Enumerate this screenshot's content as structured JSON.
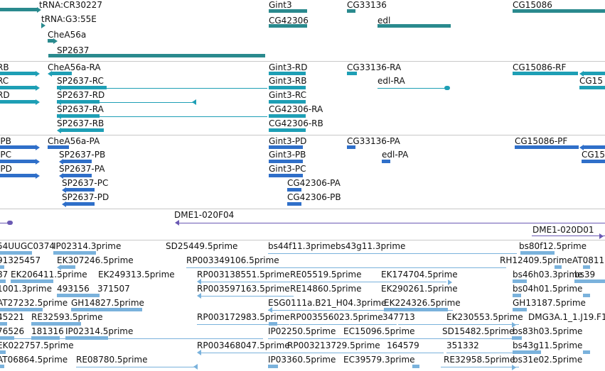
{
  "colors": {
    "gene": "#2a8a8e",
    "mrna": "#1e9fb5",
    "cds": "#2f6fc9",
    "clone": "#6a59b3",
    "est": "#7ab2dc",
    "separator": "#c8c8c8",
    "text": "#111111"
  },
  "tracks": [
    {
      "id": "genes",
      "color": "#2a8a8e",
      "features": [
        {
          "label": "tRNA:CR30227"
        },
        {
          "label": "tRNA:G3:55E"
        },
        {
          "label": "CheA56a"
        },
        {
          "label": "SP2637"
        },
        {
          "label": "Gint3"
        },
        {
          "label": "CG42306"
        },
        {
          "label": "CG33136"
        },
        {
          "label": "edl"
        },
        {
          "label": "CG15086"
        }
      ]
    },
    {
      "id": "transcripts",
      "color": "#1e9fb5",
      "features": [
        {
          "label": "RB"
        },
        {
          "label": "RC"
        },
        {
          "label": "RD"
        },
        {
          "label": "CheA56a-RA"
        },
        {
          "label": "SP2637-RC"
        },
        {
          "label": "SP2637-RD"
        },
        {
          "label": "SP2637-RA"
        },
        {
          "label": "SP2637-RB"
        },
        {
          "label": "Gint3-RD"
        },
        {
          "label": "Gint3-RB"
        },
        {
          "label": "Gint3-RC"
        },
        {
          "label": "CG42306-RA"
        },
        {
          "label": "CG42306-RB"
        },
        {
          "label": "CG33136-RA"
        },
        {
          "label": "edl-RA"
        },
        {
          "label": "CG15086-RF"
        },
        {
          "label": "CG15"
        }
      ]
    },
    {
      "id": "proteins",
      "color": "#2f6fc9",
      "features": [
        {
          "label": "-PB"
        },
        {
          "label": "-PC"
        },
        {
          "label": "-PD"
        },
        {
          "label": "CheA56a-PA"
        },
        {
          "label": "SP2637-PB"
        },
        {
          "label": "SP2637-PA"
        },
        {
          "label": "SP2637-PC"
        },
        {
          "label": "SP2637-PD"
        },
        {
          "label": "Gint3-PD"
        },
        {
          "label": "Gint3-PB"
        },
        {
          "label": "Gint3-PC"
        },
        {
          "label": "CG42306-PA"
        },
        {
          "label": "CG42306-PB"
        },
        {
          "label": "CG33136-PA"
        },
        {
          "label": "edl-PA"
        },
        {
          "label": "CG15086-PF"
        },
        {
          "label": "CG15"
        }
      ]
    },
    {
      "id": "clones",
      "color": "#6a59b3",
      "features": [
        {
          "label": "DME1-020F04"
        },
        {
          "label": "DME1-020D01"
        }
      ]
    },
    {
      "id": "ests",
      "color": "#7ab2dc",
      "features": [
        {
          "label": "54UUGC0374"
        },
        {
          "label": "IP02314.3prime"
        },
        {
          "label": "SD25449.5prime"
        },
        {
          "label": "bs44f11.3prime"
        },
        {
          "label": "bs43g11.3prime"
        },
        {
          "label": "bs80f12.5prime"
        },
        {
          "label": "91325457"
        },
        {
          "label": "EK307246.5prime"
        },
        {
          "label": "RP003349106.5prime"
        },
        {
          "label": "RH12409.5prime"
        },
        {
          "label": "AT0811"
        },
        {
          "label": "87"
        },
        {
          "label": "EK206411.5prime"
        },
        {
          "label": "EK249313.5prime"
        },
        {
          "label": "RP003138551.5prime"
        },
        {
          "label": "RE05519.5prime"
        },
        {
          "label": "EK174704.5prime"
        },
        {
          "label": "bs46h03.3prime"
        },
        {
          "label": "bs39"
        },
        {
          "label": "1001.3prime"
        },
        {
          "label": "493156"
        },
        {
          "label": "371507"
        },
        {
          "label": "RP003597163.5prime"
        },
        {
          "label": "RE14860.5prime"
        },
        {
          "label": "EK290261.5prime"
        },
        {
          "label": "bs04h01.5prime"
        },
        {
          "label": "AT27232.5prime"
        },
        {
          "label": "GH14827.5prime"
        },
        {
          "label": "ESG0111a.B21_H04.3prime"
        },
        {
          "label": "EK224326.5prime"
        },
        {
          "label": "GH13187.5prime"
        },
        {
          "label": "45221"
        },
        {
          "label": "RE32593.5prime"
        },
        {
          "label": "RP003172983.5prime"
        },
        {
          "label": "RP003556023.5prime"
        },
        {
          "label": "347713"
        },
        {
          "label": "EK230553.5prime"
        },
        {
          "label": "DMG3A.1_1.J19.F1"
        },
        {
          "label": "76526"
        },
        {
          "label": "181316"
        },
        {
          "label": "IP02314.5prime"
        },
        {
          "label": "IP02250.5prime"
        },
        {
          "label": "EC15096.5prime"
        },
        {
          "label": "SD15482.5prime"
        },
        {
          "label": "bs83h03.5prime"
        },
        {
          "label": "EK022757.5prime"
        },
        {
          "label": "RP003468047.5prime"
        },
        {
          "label": "RP003213729.5prime"
        },
        {
          "label": "164579"
        },
        {
          "label": "351332"
        },
        {
          "label": "bs43g11.5prime"
        },
        {
          "label": "AT06864.5prime"
        },
        {
          "label": "RE08780.5prime"
        },
        {
          "label": "IP03360.5prime"
        },
        {
          "label": "EC39579.3prime"
        },
        {
          "label": "RE32958.5prime"
        },
        {
          "label": "bs31e02.5prime"
        }
      ]
    }
  ]
}
